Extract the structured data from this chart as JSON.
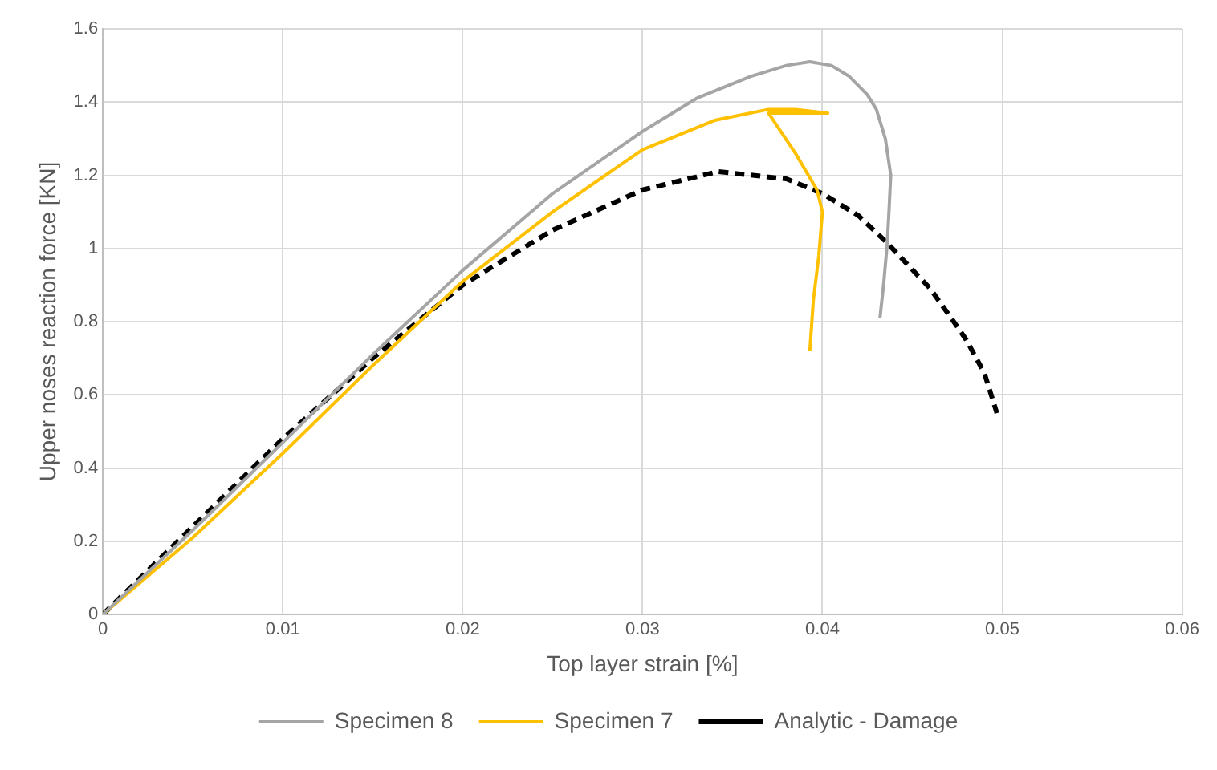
{
  "chart_data": {
    "type": "line",
    "xlabel": "Top layer strain [%]",
    "ylabel": "Upper noses reaction force [KN]",
    "xlim": [
      0,
      0.06
    ],
    "xticks": [
      0,
      0.01,
      0.02,
      0.03,
      0.04,
      0.05,
      0.06
    ],
    "ylim": [
      0,
      1.6
    ],
    "yticks": [
      0,
      0.2,
      0.4,
      0.6,
      0.8,
      1,
      1.2,
      1.4,
      1.6
    ],
    "grid": true,
    "legend": "bottom",
    "marker": "none",
    "series": [
      {
        "name": "Specimen 8",
        "color": "#a5a5a5",
        "line_style": "solid",
        "x": [
          0,
          0.005,
          0.01,
          0.015,
          0.02,
          0.025,
          0.03,
          0.033,
          0.036,
          0.038,
          0.0393,
          0.0405,
          0.0415,
          0.0425,
          0.043,
          0.0435,
          0.0438,
          0.0437,
          0.0436,
          0.0434,
          0.0432
        ],
        "values": [
          0,
          0.23,
          0.47,
          0.71,
          0.94,
          1.15,
          1.32,
          1.41,
          1.47,
          1.5,
          1.51,
          1.5,
          1.47,
          1.42,
          1.38,
          1.3,
          1.2,
          1.1,
          1.01,
          0.9,
          0.81
        ]
      },
      {
        "name": "Specimen 7",
        "color": "#ffc000",
        "line_style": "solid",
        "x": [
          0,
          0.005,
          0.01,
          0.015,
          0.02,
          0.025,
          0.03,
          0.034,
          0.037,
          0.0385,
          0.0403,
          0.037,
          0.0385,
          0.0397,
          0.04,
          0.0398,
          0.0395,
          0.0393
        ],
        "values": [
          0,
          0.21,
          0.44,
          0.68,
          0.91,
          1.1,
          1.27,
          1.35,
          1.38,
          1.38,
          1.37,
          1.37,
          1.26,
          1.16,
          1.1,
          0.98,
          0.86,
          0.72
        ]
      },
      {
        "name": "Analytic - Damage",
        "color": "#000000",
        "line_style": "dashed",
        "x": [
          0,
          0.005,
          0.01,
          0.015,
          0.02,
          0.025,
          0.03,
          0.0342,
          0.038,
          0.04,
          0.042,
          0.0436,
          0.046,
          0.0473,
          0.048,
          0.049,
          0.0497
        ],
        "values": [
          0,
          0.24,
          0.48,
          0.7,
          0.9,
          1.05,
          1.16,
          1.21,
          1.19,
          1.15,
          1.09,
          1.015,
          0.89,
          0.8,
          0.75,
          0.66,
          0.55
        ]
      }
    ]
  }
}
